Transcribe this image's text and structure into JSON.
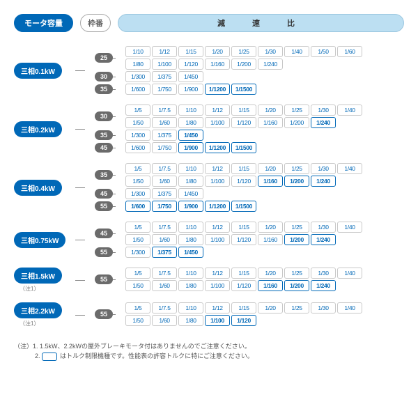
{
  "header": {
    "motor_label": "モータ容量",
    "frame_label": "枠番",
    "ratio_label": "減　速　比"
  },
  "groups": [
    {
      "motor": "三相0.1kW",
      "frames": [
        {
          "num": "25",
          "rows": [
            [
              {
                "t": "1/10"
              },
              {
                "t": "1/12"
              },
              {
                "t": "1/15"
              },
              {
                "t": "1/20"
              },
              {
                "t": "1/25"
              },
              {
                "t": "1/30"
              },
              {
                "t": "1/40"
              },
              {
                "t": "1/50"
              },
              {
                "t": "1/60"
              }
            ],
            [
              {
                "t": "1/80"
              },
              {
                "t": "1/100"
              },
              {
                "t": "1/120"
              },
              {
                "t": "1/160"
              },
              {
                "t": "1/200"
              },
              {
                "t": "1/240"
              }
            ]
          ]
        },
        {
          "num": "30",
          "rows": [
            [
              {
                "t": "1/300"
              },
              {
                "t": "1/375"
              },
              {
                "t": "1/450"
              }
            ]
          ]
        },
        {
          "num": "35",
          "rows": [
            [
              {
                "t": "1/600"
              },
              {
                "t": "1/750"
              },
              {
                "t": "1/900"
              },
              {
                "t": "1/1200",
                "hl": true
              },
              {
                "t": "1/1500",
                "hl": true
              }
            ]
          ]
        }
      ]
    },
    {
      "motor": "三相0.2kW",
      "frames": [
        {
          "num": "30",
          "rows": [
            [
              {
                "t": "1/5"
              },
              {
                "t": "1/7.5"
              },
              {
                "t": "1/10"
              },
              {
                "t": "1/12"
              },
              {
                "t": "1/15"
              },
              {
                "t": "1/20"
              },
              {
                "t": "1/25"
              },
              {
                "t": "1/30"
              },
              {
                "t": "1/40"
              }
            ],
            [
              {
                "t": "1/50"
              },
              {
                "t": "1/60"
              },
              {
                "t": "1/80"
              },
              {
                "t": "1/100"
              },
              {
                "t": "1/120"
              },
              {
                "t": "1/160"
              },
              {
                "t": "1/200"
              },
              {
                "t": "1/240",
                "hl": true
              }
            ]
          ]
        },
        {
          "num": "35",
          "rows": [
            [
              {
                "t": "1/300"
              },
              {
                "t": "1/375"
              },
              {
                "t": "1/450",
                "hl": true
              }
            ]
          ]
        },
        {
          "num": "45",
          "rows": [
            [
              {
                "t": "1/600"
              },
              {
                "t": "1/750"
              },
              {
                "t": "1/900",
                "hl": true
              },
              {
                "t": "1/1200",
                "hl": true
              },
              {
                "t": "1/1500",
                "hl": true
              }
            ]
          ]
        }
      ]
    },
    {
      "motor": "三相0.4kW",
      "frames": [
        {
          "num": "35",
          "rows": [
            [
              {
                "t": "1/5"
              },
              {
                "t": "1/7.5"
              },
              {
                "t": "1/10"
              },
              {
                "t": "1/12"
              },
              {
                "t": "1/15"
              },
              {
                "t": "1/20"
              },
              {
                "t": "1/25"
              },
              {
                "t": "1/30"
              },
              {
                "t": "1/40"
              }
            ],
            [
              {
                "t": "1/50"
              },
              {
                "t": "1/60"
              },
              {
                "t": "1/80"
              },
              {
                "t": "1/100"
              },
              {
                "t": "1/120"
              },
              {
                "t": "1/160",
                "hl": true
              },
              {
                "t": "1/200",
                "hl": true
              },
              {
                "t": "1/240",
                "hl": true
              }
            ]
          ]
        },
        {
          "num": "45",
          "rows": [
            [
              {
                "t": "1/300"
              },
              {
                "t": "1/375"
              },
              {
                "t": "1/450"
              }
            ]
          ]
        },
        {
          "num": "55",
          "rows": [
            [
              {
                "t": "1/600",
                "hl": true
              },
              {
                "t": "1/750",
                "hl": true
              },
              {
                "t": "1/900",
                "hl": true
              },
              {
                "t": "1/1200",
                "hl": true
              },
              {
                "t": "1/1500",
                "hl": true
              }
            ]
          ]
        }
      ]
    },
    {
      "motor": "三相0.75kW",
      "frames": [
        {
          "num": "45",
          "rows": [
            [
              {
                "t": "1/5"
              },
              {
                "t": "1/7.5"
              },
              {
                "t": "1/10"
              },
              {
                "t": "1/12"
              },
              {
                "t": "1/15"
              },
              {
                "t": "1/20"
              },
              {
                "t": "1/25"
              },
              {
                "t": "1/30"
              },
              {
                "t": "1/40"
              }
            ],
            [
              {
                "t": "1/50"
              },
              {
                "t": "1/60"
              },
              {
                "t": "1/80"
              },
              {
                "t": "1/100"
              },
              {
                "t": "1/120"
              },
              {
                "t": "1/160"
              },
              {
                "t": "1/200",
                "hl": true
              },
              {
                "t": "1/240",
                "hl": true
              }
            ]
          ]
        },
        {
          "num": "55",
          "rows": [
            [
              {
                "t": "1/300"
              },
              {
                "t": "1/375",
                "hl": true
              },
              {
                "t": "1/450",
                "hl": true
              }
            ]
          ]
        }
      ]
    },
    {
      "motor": "三相1.5kW",
      "note": "（注1）",
      "frames": [
        {
          "num": "55",
          "rows": [
            [
              {
                "t": "1/5"
              },
              {
                "t": "1/7.5"
              },
              {
                "t": "1/10"
              },
              {
                "t": "1/12"
              },
              {
                "t": "1/15"
              },
              {
                "t": "1/20"
              },
              {
                "t": "1/25"
              },
              {
                "t": "1/30"
              },
              {
                "t": "1/40"
              }
            ],
            [
              {
                "t": "1/50"
              },
              {
                "t": "1/60"
              },
              {
                "t": "1/80"
              },
              {
                "t": "1/100"
              },
              {
                "t": "1/120"
              },
              {
                "t": "1/160",
                "hl": true
              },
              {
                "t": "1/200",
                "hl": true
              },
              {
                "t": "1/240",
                "hl": true
              }
            ]
          ]
        }
      ]
    },
    {
      "motor": "三相2.2kW",
      "note": "（注1）",
      "frames": [
        {
          "num": "55",
          "rows": [
            [
              {
                "t": "1/5"
              },
              {
                "t": "1/7.5"
              },
              {
                "t": "1/10"
              },
              {
                "t": "1/12"
              },
              {
                "t": "1/15"
              },
              {
                "t": "1/20"
              },
              {
                "t": "1/25"
              },
              {
                "t": "1/30"
              },
              {
                "t": "1/40"
              }
            ],
            [
              {
                "t": "1/50"
              },
              {
                "t": "1/60"
              },
              {
                "t": "1/80"
              },
              {
                "t": "1/100",
                "hl": true
              },
              {
                "t": "1/120",
                "hl": true
              }
            ]
          ]
        }
      ]
    }
  ],
  "footnotes": {
    "prefix": "（注）",
    "n1": "1.  1.5kW、2.2kWの屋外ブレーキモータ付はありませんのでご注意ください。",
    "n2_suffix": "はトルク制限機種です。性能表の許容トルクに特にご注意ください。",
    "n2_prefix": "2.  "
  }
}
